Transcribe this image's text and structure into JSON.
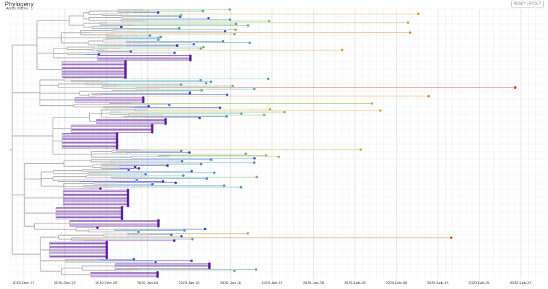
{
  "panel": {
    "title": "Phylogeny",
    "color_by_label": "Admin division",
    "reset_label": "RESET LAYOUT"
  },
  "colors": {
    "branch": "#b3b3b3",
    "grid": "#ececec",
    "tip_palette": [
      "#5e1d9d",
      "#4b26b1",
      "#4041c7",
      "#3f63cf",
      "#4681ca",
      "#5195b6",
      "#5da8a3",
      "#71b484",
      "#89bb6b",
      "#a3be56",
      "#bdbb48",
      "#d1b43f",
      "#dea13a",
      "#e3843a",
      "#e1583a",
      "#dc2f24"
    ]
  },
  "chart_data": {
    "type": "phylogenetic-tree",
    "x_axis": {
      "unit": "date",
      "range": [
        "2019-12-15",
        "2020-03-02"
      ],
      "ticks": [
        "2019-Dec-17",
        "2019-Dec-23",
        "2019-Dec-29",
        "2020-Jan-04",
        "2020-Jan-10",
        "2020-Jan-16",
        "2020-Jan-22",
        "2020-Jan-28",
        "2020-Feb-03",
        "2020-Feb-09",
        "2020-Feb-15",
        "2020-Feb-21",
        "2020-Feb-27"
      ],
      "grid": true
    },
    "colored_by": "Admin division",
    "legend": "none"
  }
}
